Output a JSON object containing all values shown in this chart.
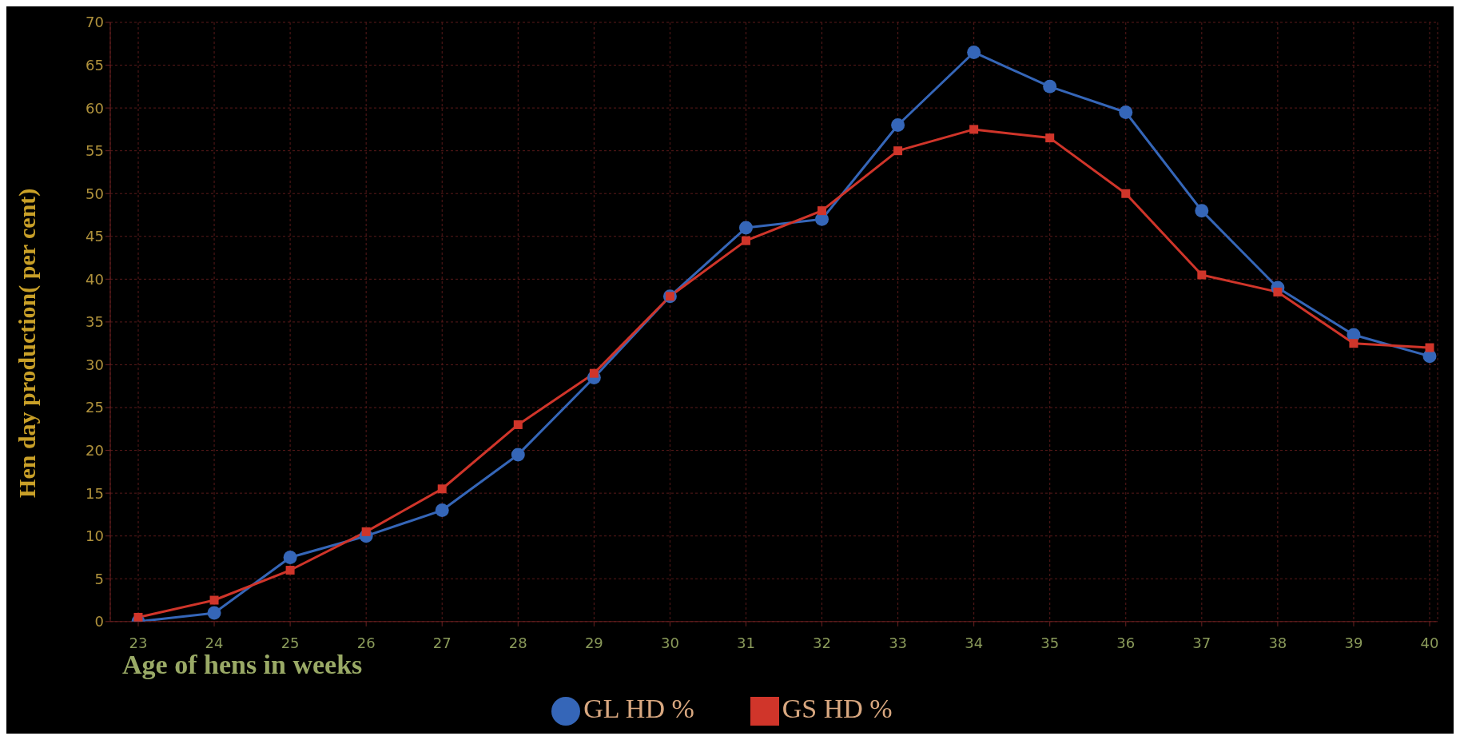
{
  "chart_data": {
    "type": "line",
    "xlabel": "Age of hens in weeks",
    "ylabel": "Hen day  production( per cent)",
    "categories": [
      "23",
      "24",
      "25",
      "26",
      "27",
      "28",
      "29",
      "30",
      "31",
      "32",
      "33",
      "34",
      "35",
      "36",
      "37",
      "38",
      "39",
      "40"
    ],
    "series": [
      {
        "name": "GL  HD %",
        "color": "#3566b8",
        "marker": "circle",
        "values": [
          0,
          1,
          7.5,
          10,
          13,
          19.5,
          28.5,
          38,
          46,
          47,
          58,
          66.5,
          62.5,
          59.5,
          48,
          39,
          33.5,
          31
        ]
      },
      {
        "name": "GS  HD %",
        "color": "#d0352a",
        "marker": "square",
        "values": [
          0.5,
          2.5,
          6,
          10.5,
          15.5,
          23,
          29,
          38,
          44.5,
          48,
          55,
          57.5,
          56.5,
          50,
          40.5,
          38.5,
          32.5,
          32
        ]
      }
    ],
    "ylim": [
      0,
      70
    ],
    "yticks": [
      0,
      5,
      10,
      15,
      20,
      25,
      30,
      35,
      40,
      45,
      50,
      55,
      60,
      65,
      70
    ],
    "grid": true,
    "legend": "bottom"
  }
}
